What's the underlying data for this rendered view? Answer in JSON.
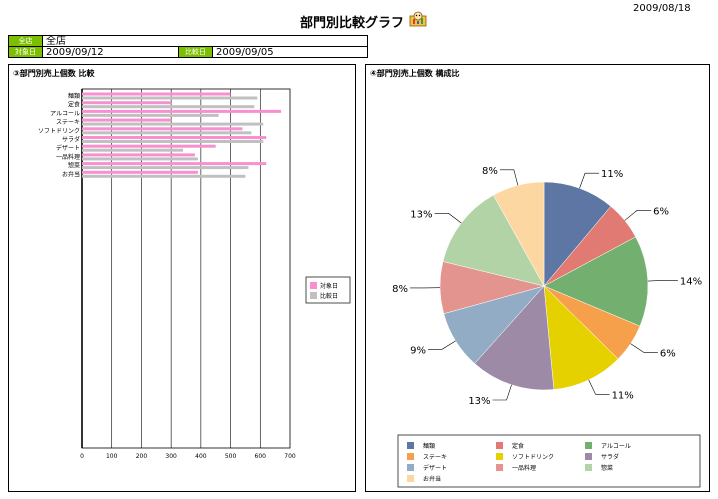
{
  "header": {
    "date": "2009/08/18",
    "title": "部門別比較グラフ"
  },
  "info": {
    "store_label": "全店",
    "store_value": "全店",
    "target_label": "対象日",
    "target_value": "2009/09/12",
    "compare_label": "比較日",
    "compare_value": "2009/09/05"
  },
  "chart_data": [
    {
      "type": "bar",
      "orientation": "horizontal",
      "title": "③部門別売上個数 比較",
      "categories": [
        "麺類",
        "定食",
        "アルコール",
        "ステーキ",
        "ソフトドリンク",
        "サラダ",
        "デザート",
        "一品料理",
        "惣菜",
        "お弁当"
      ],
      "series": [
        {
          "name": "対象日",
          "color": "#f78fd0",
          "values": [
            500,
            300,
            670,
            300,
            540,
            620,
            450,
            380,
            620,
            390
          ]
        },
        {
          "name": "比較日",
          "color": "#c0c0c0",
          "values": [
            590,
            580,
            460,
            610,
            570,
            610,
            340,
            390,
            560,
            550
          ]
        }
      ],
      "xlim": [
        0,
        700
      ],
      "xticks": [
        "0",
        "100",
        "200",
        "300",
        "400",
        "500",
        "600",
        "700"
      ],
      "legend": "right"
    },
    {
      "type": "pie",
      "title": "④部門別売上個数 構成比",
      "slices": [
        {
          "label": "麺類",
          "value": 11,
          "color": "#5e76a4"
        },
        {
          "label": "定食",
          "value": 6,
          "color": "#e07a72"
        },
        {
          "label": "アルコール",
          "value": 14,
          "color": "#73b06f"
        },
        {
          "label": "ステーキ",
          "value": 6,
          "color": "#f7a04b"
        },
        {
          "label": "ソフトドリンク",
          "value": 11,
          "color": "#e6d100"
        },
        {
          "label": "サラダ",
          "value": 13,
          "color": "#9c8aa6"
        },
        {
          "label": "デザート",
          "value": 9,
          "color": "#92acc6"
        },
        {
          "label": "一品料理",
          "value": 8,
          "color": "#e3948e"
        },
        {
          "label": "惣菜",
          "value": 13,
          "color": "#b2d3a5"
        },
        {
          "label": "お弁当",
          "value": 8,
          "color": "#fdd7a2"
        }
      ],
      "legend": "bottom"
    }
  ]
}
